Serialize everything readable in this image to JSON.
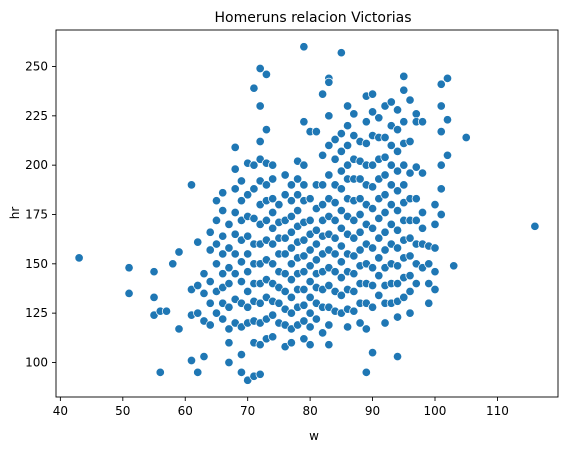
{
  "chart_data": {
    "type": "scatter",
    "title": "Homeruns relacion Victorias",
    "xlabel": "w",
    "ylabel": "hr",
    "xlim": [
      39.3,
      119.7
    ],
    "ylim": [
      82.5,
      268.5
    ],
    "xticks": [
      40,
      50,
      60,
      70,
      80,
      90,
      100,
      110
    ],
    "yticks": [
      100,
      125,
      150,
      175,
      200,
      225,
      250
    ],
    "grid": false,
    "marker_color": "#1f77b4",
    "marker_edge_color": "#ffffff",
    "points": [
      [
        43,
        153
      ],
      [
        51,
        148
      ],
      [
        51,
        135
      ],
      [
        55,
        146
      ],
      [
        55,
        133
      ],
      [
        55,
        124
      ],
      [
        56,
        126
      ],
      [
        56,
        95
      ],
      [
        57,
        126
      ],
      [
        58,
        150
      ],
      [
        59,
        156
      ],
      [
        59,
        117
      ],
      [
        61,
        190
      ],
      [
        61,
        137
      ],
      [
        61,
        124
      ],
      [
        61,
        101
      ],
      [
        62,
        161
      ],
      [
        62,
        139
      ],
      [
        62,
        125
      ],
      [
        62,
        95
      ],
      [
        63,
        145
      ],
      [
        63,
        135
      ],
      [
        63,
        121
      ],
      [
        63,
        103
      ],
      [
        64,
        166
      ],
      [
        64,
        157
      ],
      [
        64,
        141
      ],
      [
        64,
        130
      ],
      [
        64,
        119
      ],
      [
        65,
        182
      ],
      [
        65,
        172
      ],
      [
        65,
        160
      ],
      [
        65,
        150
      ],
      [
        65,
        136
      ],
      [
        65,
        125
      ],
      [
        66,
        186
      ],
      [
        66,
        177
      ],
      [
        66,
        164
      ],
      [
        66,
        155
      ],
      [
        66,
        145
      ],
      [
        66,
        138
      ],
      [
        66,
        130
      ],
      [
        66,
        122
      ],
      [
        67,
        170
      ],
      [
        67,
        158
      ],
      [
        67,
        148
      ],
      [
        67,
        140
      ],
      [
        67,
        128
      ],
      [
        67,
        117
      ],
      [
        67,
        110
      ],
      [
        67,
        100
      ],
      [
        68,
        209
      ],
      [
        68,
        198
      ],
      [
        68,
        188
      ],
      [
        68,
        176
      ],
      [
        68,
        165
      ],
      [
        68,
        155
      ],
      [
        68,
        145
      ],
      [
        68,
        132
      ],
      [
        68,
        120
      ],
      [
        69,
        192
      ],
      [
        69,
        182
      ],
      [
        69,
        172
      ],
      [
        69,
        162
      ],
      [
        69,
        151
      ],
      [
        69,
        141
      ],
      [
        69,
        130
      ],
      [
        69,
        118
      ],
      [
        69,
        104
      ],
      [
        69,
        95
      ],
      [
        70,
        201
      ],
      [
        70,
        185
      ],
      [
        70,
        174
      ],
      [
        70,
        164
      ],
      [
        70,
        155
      ],
      [
        70,
        146
      ],
      [
        70,
        136
      ],
      [
        70,
        128
      ],
      [
        70,
        120
      ],
      [
        70,
        91
      ],
      [
        71,
        239
      ],
      [
        71,
        200
      ],
      [
        71,
        188
      ],
      [
        71,
        173
      ],
      [
        71,
        160
      ],
      [
        71,
        150
      ],
      [
        71,
        140
      ],
      [
        71,
        131
      ],
      [
        71,
        121
      ],
      [
        71,
        110
      ],
      [
        71,
        93
      ],
      [
        72,
        249
      ],
      [
        72,
        230
      ],
      [
        72,
        212
      ],
      [
        72,
        203
      ],
      [
        72,
        192
      ],
      [
        72,
        180
      ],
      [
        72,
        170
      ],
      [
        72,
        160
      ],
      [
        72,
        150
      ],
      [
        72,
        140
      ],
      [
        72,
        130
      ],
      [
        72,
        120
      ],
      [
        72,
        109
      ],
      [
        72,
        94
      ],
      [
        73,
        246
      ],
      [
        73,
        218
      ],
      [
        73,
        201
      ],
      [
        73,
        190
      ],
      [
        73,
        182
      ],
      [
        73,
        172
      ],
      [
        73,
        162
      ],
      [
        73,
        152
      ],
      [
        73,
        142
      ],
      [
        73,
        133
      ],
      [
        73,
        122
      ],
      [
        73,
        112
      ],
      [
        74,
        200
      ],
      [
        74,
        193
      ],
      [
        74,
        183
      ],
      [
        74,
        176
      ],
      [
        74,
        168
      ],
      [
        74,
        160
      ],
      [
        74,
        150
      ],
      [
        74,
        140
      ],
      [
        74,
        131
      ],
      [
        74,
        124
      ],
      [
        74,
        113
      ],
      [
        75,
        180
      ],
      [
        75,
        171
      ],
      [
        75,
        163
      ],
      [
        75,
        155
      ],
      [
        75,
        146
      ],
      [
        75,
        138
      ],
      [
        75,
        130
      ],
      [
        75,
        120
      ],
      [
        76,
        195
      ],
      [
        76,
        185
      ],
      [
        76,
        172
      ],
      [
        76,
        163
      ],
      [
        76,
        155
      ],
      [
        76,
        145
      ],
      [
        76,
        136
      ],
      [
        76,
        127
      ],
      [
        76,
        119
      ],
      [
        76,
        108
      ],
      [
        77,
        190
      ],
      [
        77,
        182
      ],
      [
        77,
        174
      ],
      [
        77,
        166
      ],
      [
        77,
        158
      ],
      [
        77,
        150
      ],
      [
        77,
        142
      ],
      [
        77,
        133
      ],
      [
        77,
        125
      ],
      [
        77,
        117
      ],
      [
        77,
        110
      ],
      [
        78,
        202
      ],
      [
        78,
        193
      ],
      [
        78,
        185
      ],
      [
        78,
        177
      ],
      [
        78,
        169
      ],
      [
        78,
        161
      ],
      [
        78,
        153
      ],
      [
        78,
        145
      ],
      [
        78,
        137
      ],
      [
        78,
        128
      ],
      [
        78,
        119
      ],
      [
        79,
        260
      ],
      [
        79,
        222
      ],
      [
        79,
        200
      ],
      [
        79,
        190
      ],
      [
        79,
        182
      ],
      [
        79,
        171
      ],
      [
        79,
        162
      ],
      [
        79,
        154
      ],
      [
        79,
        146
      ],
      [
        79,
        137
      ],
      [
        79,
        129
      ],
      [
        79,
        121
      ],
      [
        79,
        112
      ],
      [
        80,
        217
      ],
      [
        80,
        183
      ],
      [
        80,
        172
      ],
      [
        80,
        165
      ],
      [
        80,
        157
      ],
      [
        80,
        149
      ],
      [
        80,
        141
      ],
      [
        80,
        133
      ],
      [
        80,
        125
      ],
      [
        80,
        118
      ],
      [
        80,
        109
      ],
      [
        81,
        217
      ],
      [
        81,
        190
      ],
      [
        81,
        178
      ],
      [
        81,
        167
      ],
      [
        81,
        160
      ],
      [
        81,
        152
      ],
      [
        81,
        145
      ],
      [
        81,
        138
      ],
      [
        81,
        130
      ],
      [
        81,
        122
      ],
      [
        82,
        236
      ],
      [
        82,
        205
      ],
      [
        82,
        190
      ],
      [
        82,
        180
      ],
      [
        82,
        172
      ],
      [
        82,
        164
      ],
      [
        82,
        155
      ],
      [
        82,
        146
      ],
      [
        82,
        137
      ],
      [
        82,
        128
      ],
      [
        82,
        115
      ],
      [
        83,
        244
      ],
      [
        83,
        242
      ],
      [
        83,
        225
      ],
      [
        83,
        210
      ],
      [
        83,
        195
      ],
      [
        83,
        183
      ],
      [
        83,
        174
      ],
      [
        83,
        165
      ],
      [
        83,
        157
      ],
      [
        83,
        148
      ],
      [
        83,
        139
      ],
      [
        83,
        128
      ],
      [
        83,
        119
      ],
      [
        83,
        109
      ],
      [
        84,
        213
      ],
      [
        84,
        203
      ],
      [
        84,
        190
      ],
      [
        84,
        181
      ],
      [
        84,
        172
      ],
      [
        84,
        163
      ],
      [
        84,
        155
      ],
      [
        84,
        146
      ],
      [
        84,
        136
      ],
      [
        84,
        126
      ],
      [
        85,
        257
      ],
      [
        85,
        216
      ],
      [
        85,
        207
      ],
      [
        85,
        197
      ],
      [
        85,
        188
      ],
      [
        85,
        177
      ],
      [
        85,
        168
      ],
      [
        85,
        159
      ],
      [
        85,
        151
      ],
      [
        85,
        143
      ],
      [
        85,
        134
      ],
      [
        85,
        125
      ],
      [
        86,
        230
      ],
      [
        86,
        220
      ],
      [
        86,
        210
      ],
      [
        86,
        200
      ],
      [
        86,
        193
      ],
      [
        86,
        183
      ],
      [
        86,
        174
      ],
      [
        86,
        165
      ],
      [
        86,
        155
      ],
      [
        86,
        146
      ],
      [
        86,
        137
      ],
      [
        86,
        127
      ],
      [
        86,
        118
      ],
      [
        87,
        226
      ],
      [
        87,
        215
      ],
      [
        87,
        203
      ],
      [
        87,
        193
      ],
      [
        87,
        182
      ],
      [
        87,
        172
      ],
      [
        87,
        163
      ],
      [
        87,
        154
      ],
      [
        87,
        145
      ],
      [
        87,
        136
      ],
      [
        87,
        126
      ],
      [
        88,
        212
      ],
      [
        88,
        202
      ],
      [
        88,
        193
      ],
      [
        88,
        183
      ],
      [
        88,
        175
      ],
      [
        88,
        166
      ],
      [
        88,
        157
      ],
      [
        88,
        149
      ],
      [
        88,
        140
      ],
      [
        88,
        130
      ],
      [
        88,
        120
      ],
      [
        89,
        235
      ],
      [
        89,
        222
      ],
      [
        89,
        211
      ],
      [
        89,
        200
      ],
      [
        89,
        190
      ],
      [
        89,
        180
      ],
      [
        89,
        170
      ],
      [
        89,
        160
      ],
      [
        89,
        150
      ],
      [
        89,
        140
      ],
      [
        89,
        130
      ],
      [
        89,
        117
      ],
      [
        89,
        95
      ],
      [
        90,
        236
      ],
      [
        90,
        227
      ],
      [
        90,
        215
      ],
      [
        90,
        200
      ],
      [
        90,
        189
      ],
      [
        90,
        178
      ],
      [
        90,
        168
      ],
      [
        90,
        158
      ],
      [
        90,
        148
      ],
      [
        90,
        139
      ],
      [
        90,
        128
      ],
      [
        90,
        105
      ],
      [
        91,
        224
      ],
      [
        91,
        214
      ],
      [
        91,
        203
      ],
      [
        91,
        193
      ],
      [
        91,
        183
      ],
      [
        91,
        173
      ],
      [
        91,
        163
      ],
      [
        91,
        153
      ],
      [
        91,
        144
      ],
      [
        91,
        134
      ],
      [
        92,
        230
      ],
      [
        92,
        214
      ],
      [
        92,
        204
      ],
      [
        92,
        195
      ],
      [
        92,
        185
      ],
      [
        92,
        176
      ],
      [
        92,
        166
      ],
      [
        92,
        157
      ],
      [
        92,
        148
      ],
      [
        92,
        139
      ],
      [
        92,
        130
      ],
      [
        92,
        120
      ],
      [
        93,
        232
      ],
      [
        93,
        220
      ],
      [
        93,
        210
      ],
      [
        93,
        200
      ],
      [
        93,
        190
      ],
      [
        93,
        180
      ],
      [
        93,
        170
      ],
      [
        93,
        160
      ],
      [
        93,
        150
      ],
      [
        93,
        140
      ],
      [
        93,
        130
      ],
      [
        94,
        228
      ],
      [
        94,
        218
      ],
      [
        94,
        207
      ],
      [
        94,
        197
      ],
      [
        94,
        187
      ],
      [
        94,
        177
      ],
      [
        94,
        167
      ],
      [
        94,
        158
      ],
      [
        94,
        149
      ],
      [
        94,
        140
      ],
      [
        94,
        131
      ],
      [
        94,
        123
      ],
      [
        94,
        103
      ],
      [
        95,
        245
      ],
      [
        95,
        238
      ],
      [
        95,
        222
      ],
      [
        95,
        211
      ],
      [
        95,
        200
      ],
      [
        95,
        190
      ],
      [
        95,
        181
      ],
      [
        95,
        172
      ],
      [
        95,
        162
      ],
      [
        95,
        153
      ],
      [
        95,
        143
      ],
      [
        95,
        133
      ],
      [
        96,
        233
      ],
      [
        96,
        212
      ],
      [
        96,
        196
      ],
      [
        96,
        183
      ],
      [
        96,
        172
      ],
      [
        96,
        163
      ],
      [
        96,
        154
      ],
      [
        96,
        144
      ],
      [
        96,
        136
      ],
      [
        96,
        125
      ],
      [
        97,
        226
      ],
      [
        97,
        222
      ],
      [
        97,
        199
      ],
      [
        97,
        183
      ],
      [
        97,
        172
      ],
      [
        97,
        160
      ],
      [
        97,
        150
      ],
      [
        97,
        140
      ],
      [
        98,
        222
      ],
      [
        98,
        196
      ],
      [
        98,
        176
      ],
      [
        98,
        168
      ],
      [
        98,
        160
      ],
      [
        98,
        148
      ],
      [
        99,
        159
      ],
      [
        99,
        150
      ],
      [
        99,
        140
      ],
      [
        99,
        130
      ],
      [
        100,
        180
      ],
      [
        100,
        170
      ],
      [
        100,
        158
      ],
      [
        100,
        146
      ],
      [
        100,
        137
      ],
      [
        101,
        241
      ],
      [
        101,
        230
      ],
      [
        101,
        217
      ],
      [
        101,
        200
      ],
      [
        101,
        188
      ],
      [
        101,
        175
      ],
      [
        102,
        244
      ],
      [
        102,
        223
      ],
      [
        102,
        205
      ],
      [
        103,
        149
      ],
      [
        105,
        214
      ],
      [
        116,
        169
      ]
    ]
  }
}
